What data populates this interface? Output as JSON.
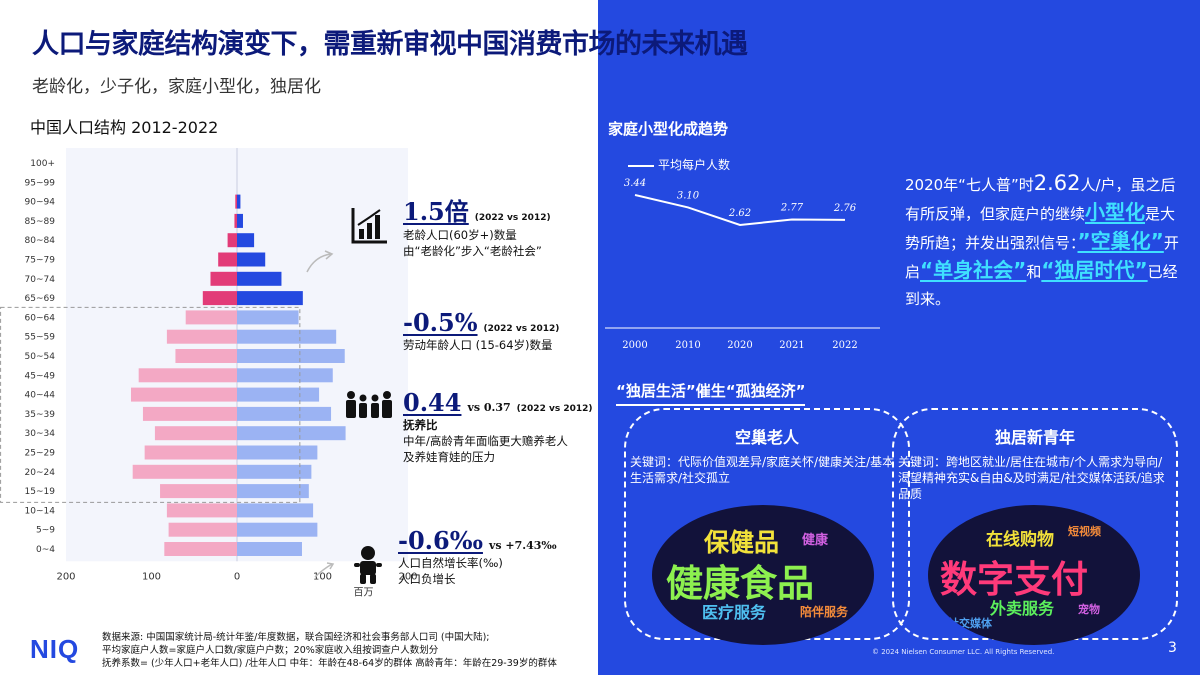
{
  "title": "人口与家庭结构演变下，需重新审视中国消费市场的未来机遇",
  "subtitle": "老龄化，少子化，家庭小型化，独居化",
  "colors": {
    "blue": "#2449e0",
    "navy": "#0c1a7a",
    "pink_dark": "#e23b78",
    "pink_light": "#f3a8c4",
    "blue_dark": "#2449e0",
    "blue_light": "#9bb3f3",
    "cyan": "#3fe0ff"
  },
  "chart_data": [
    {
      "type": "bar",
      "subtype": "population-pyramid",
      "title": "中国人口结构 2012-2022",
      "xlabel": "百万",
      "x_ticks": [
        "200",
        "100",
        "0",
        "100",
        "200"
      ],
      "xlim": [
        -200,
        200
      ],
      "categories": [
        "100+",
        "95~99",
        "90~94",
        "85~89",
        "80~84",
        "75~79",
        "70~74",
        "65~69",
        "60~64",
        "55~59",
        "50~54",
        "45~49",
        "40~44",
        "35~39",
        "30~34",
        "25~29",
        "20~24",
        "15~19",
        "10~14",
        "5~9",
        "0~4"
      ],
      "series": [
        {
          "side": "left",
          "values": [
            0,
            0,
            2,
            3,
            11,
            22,
            31,
            40,
            60,
            82,
            72,
            115,
            124,
            110,
            96,
            108,
            122,
            90,
            82,
            80,
            85
          ]
        },
        {
          "side": "right",
          "values": [
            0,
            0,
            4,
            7,
            20,
            33,
            52,
            77,
            72,
            116,
            126,
            112,
            96,
            110,
            127,
            94,
            87,
            84,
            89,
            94,
            76
          ]
        }
      ]
    },
    {
      "type": "line",
      "title": "家庭小型化成趋势",
      "legend": "平均每户人数",
      "x": [
        "2000",
        "2010",
        "2020",
        "2021",
        "2022"
      ],
      "values": [
        3.44,
        3.1,
        2.62,
        2.77,
        2.76
      ],
      "labels": [
        "3.44",
        "3.10",
        "2.62",
        "2.77",
        "2.76"
      ]
    }
  ],
  "stats": {
    "s1": {
      "big": "1.5倍",
      "vs": "(2022 vs 2012)",
      "l1": "老龄人口(60岁+)数量",
      "l2": "由“老龄化”步入“老龄社会”"
    },
    "s2": {
      "big": "-0.5%",
      "vs": "(2022 vs 2012)",
      "l1": "劳动年龄人口 (15-64岁)数量"
    },
    "s3": {
      "big": "0.44",
      "vs_pre": "vs 0.37",
      "vs": "(2022 vs 2012)",
      "l1": "抚养比",
      "l2": "中年/高龄青年面临更大赡养老人",
      "l3": "及养娃育娃的压力"
    },
    "s4": {
      "big": "-0.6‰",
      "vs": "vs +7.43‰",
      "l1": "人口自然增长率(‰)",
      "l2": "人口负增长"
    }
  },
  "icons": {
    "chart": "bar-chart-icon",
    "family": "family-icon",
    "baby": "baby-icon",
    "arrow": "curved-arrow-icon"
  },
  "source": {
    "l1": "数据来源: 中国国家统计局-统计年鉴/年度数据，联合国经济和社会事务部人口司 (中国大陆);",
    "l2": "平均家庭户人数=家庭户人口数/家庭户户数；20%家庭收入组按调查户人数划分",
    "l3": "抚养系数= (少年人口+老年人口) /壮年人口    中年：年龄在48-64岁的群体  高龄青年：年龄在29-39岁的群体"
  },
  "logo": "NIQ",
  "right": {
    "p1": "2020年“七人普”时",
    "p1_num": "2.62",
    "p2": "人/户，虽之后有所反弹，但家庭户的继续",
    "hl1": "小型化",
    "p3": "是大势所趋；并发出强烈信号：",
    "hl2": "”空巢化”",
    "p4": "开启",
    "hl3": "“单身社会”",
    "p5": "和",
    "hl4": "“独居时代”",
    "p6": "已经到来。"
  },
  "section2_title": "“独居生活”催生“孤独经济”",
  "cards": [
    {
      "title": "空巢老人",
      "keywords": "关键词：代际价值观差异/家庭关怀/健康关注/基本生活需求/社交孤立",
      "cloud_words": [
        "保健品",
        "健康食品",
        "医疗服务",
        "陪伴服务",
        "健康"
      ]
    },
    {
      "title": "独居新青年",
      "keywords": "关键词：跨地区就业/居住在城市/个人需求为导向/渴望精神充实&自由&及时满足/社交媒体活跃/追求品质",
      "cloud_words": [
        "在线购物",
        "数字支付",
        "外卖服务",
        "社交媒体",
        "短视频",
        "宠物"
      ]
    }
  ],
  "copyright": "© 2024 Nielsen Consumer LLC. All Rights Reserved.",
  "page_number": "3"
}
